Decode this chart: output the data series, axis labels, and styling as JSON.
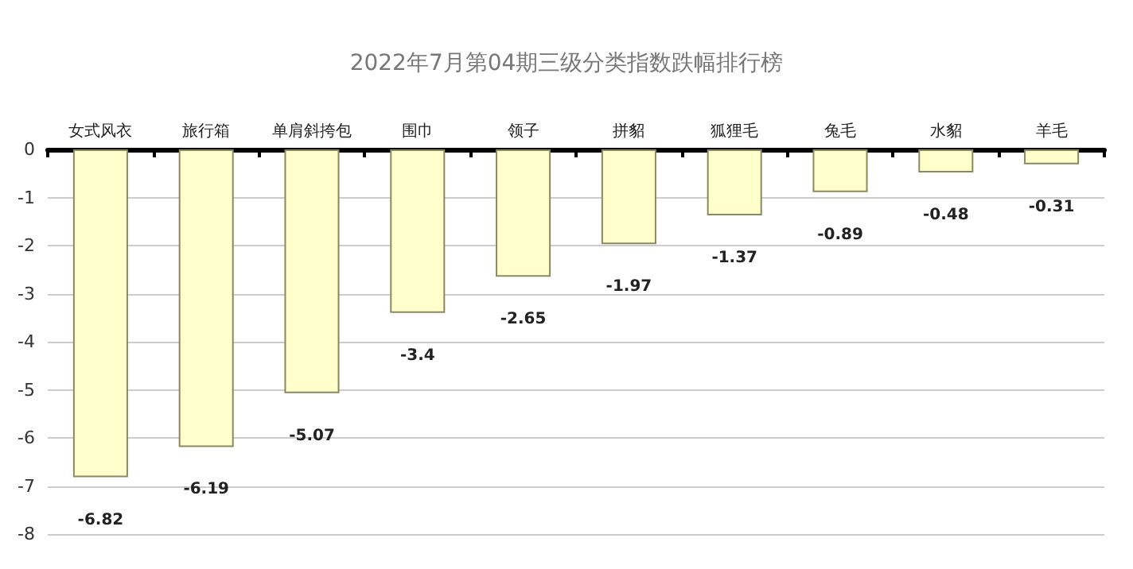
{
  "chart_data": {
    "type": "bar",
    "title": "2022年7月第04期三级分类指数跌幅排行榜",
    "categories": [
      "女式风衣",
      "旅行箱",
      "单肩斜挎包",
      "围巾",
      "领子",
      "拼貂",
      "狐狸毛",
      "兔毛",
      "水貂",
      "羊毛"
    ],
    "values": [
      -6.82,
      -6.19,
      -5.07,
      -3.4,
      -2.65,
      -1.97,
      -1.37,
      -0.89,
      -0.48,
      -0.31
    ],
    "color": "#ffffcc",
    "ylim": [
      -8,
      0
    ],
    "yticks": [
      0,
      -1,
      -2,
      -3,
      -4,
      -5,
      -6,
      -7,
      -8
    ],
    "grid": "y",
    "data_labels": true
  }
}
